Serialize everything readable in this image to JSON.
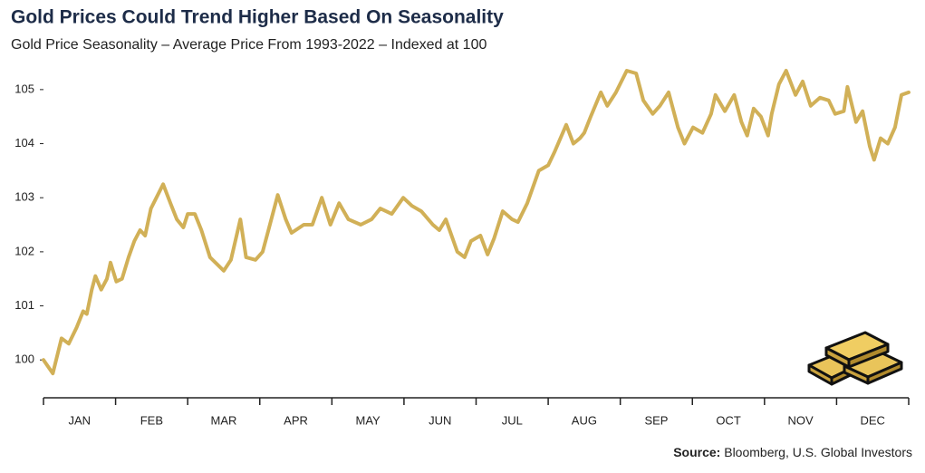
{
  "chart_data": {
    "type": "line",
    "title": "Gold Prices Could Trend Higher Based On Seasonality",
    "subtitle": "Gold Price Seasonality – Average Price From 1993-2022 – Indexed at 100",
    "source_label": "Source:",
    "source": "Bloomberg, U.S. Global Investors",
    "categories": [
      "JAN",
      "FEB",
      "MAR",
      "APR",
      "MAY",
      "JUN",
      "JUL",
      "AUG",
      "SEP",
      "OCT",
      "NOV",
      "DEC"
    ],
    "xlim": [
      0,
      12
    ],
    "xticks": [
      0,
      1,
      2,
      3,
      4,
      5,
      6,
      7,
      8,
      9,
      10,
      11,
      12
    ],
    "ylim": [
      99.3,
      105.4
    ],
    "yticks": [
      100,
      101,
      102,
      103,
      104,
      105
    ],
    "grid": false,
    "x": [
      0,
      0.13,
      0.25,
      0.35,
      0.46,
      0.55,
      0.6,
      0.67,
      0.72,
      0.8,
      0.88,
      0.93,
      1.01,
      1.09,
      1.18,
      1.26,
      1.34,
      1.41,
      1.49,
      1.66,
      1.76,
      1.85,
      1.94,
      2.0,
      2.1,
      2.19,
      2.31,
      2.5,
      2.6,
      2.73,
      2.81,
      2.94,
      3.04,
      3.12,
      3.25,
      3.36,
      3.44,
      3.61,
      3.73,
      3.86,
      3.98,
      4.1,
      4.23,
      4.4,
      4.55,
      4.67,
      4.83,
      4.99,
      5.11,
      5.24,
      5.4,
      5.49,
      5.58,
      5.74,
      5.84,
      5.93,
      6.06,
      6.16,
      6.25,
      6.37,
      6.5,
      6.58,
      6.71,
      6.87,
      7.0,
      7.09,
      7.25,
      7.35,
      7.44,
      7.5,
      7.59,
      7.73,
      7.82,
      7.94,
      8.09,
      8.22,
      8.32,
      8.45,
      8.55,
      8.67,
      8.8,
      8.89,
      9.01,
      9.14,
      9.26,
      9.32,
      9.45,
      9.58,
      9.68,
      9.76,
      9.85,
      9.95,
      10.05,
      10.1,
      10.2,
      10.3,
      10.43,
      10.53,
      10.64,
      10.77,
      10.89,
      10.98,
      11.1,
      11.15,
      11.27,
      11.36,
      11.46,
      11.52,
      11.61,
      11.71,
      11.81,
      11.9,
      12.0
    ],
    "series": [
      {
        "name": "Gold Price Seasonality",
        "color": "#d1b057",
        "values": [
          100,
          99.75,
          100.4,
          100.3,
          100.6,
          100.9,
          100.85,
          101.3,
          101.55,
          101.3,
          101.5,
          101.8,
          101.45,
          101.5,
          101.9,
          102.2,
          102.4,
          102.3,
          102.8,
          103.25,
          102.9,
          102.6,
          102.45,
          102.7,
          102.7,
          102.4,
          101.9,
          101.65,
          101.85,
          102.6,
          101.9,
          101.85,
          102.0,
          102.4,
          103.05,
          102.6,
          102.35,
          102.5,
          102.5,
          103.0,
          102.5,
          102.9,
          102.6,
          102.5,
          102.6,
          102.8,
          102.7,
          103.0,
          102.85,
          102.75,
          102.5,
          102.4,
          102.6,
          102.0,
          101.9,
          102.2,
          102.3,
          101.95,
          102.25,
          102.75,
          102.6,
          102.55,
          102.9,
          103.5,
          103.6,
          103.85,
          104.35,
          104.0,
          104.1,
          104.2,
          104.5,
          104.95,
          104.7,
          104.95,
          105.35,
          105.3,
          104.8,
          104.55,
          104.7,
          104.95,
          104.3,
          104.0,
          104.3,
          104.2,
          104.55,
          104.9,
          104.6,
          104.9,
          104.4,
          104.15,
          104.65,
          104.5,
          104.15,
          104.55,
          105.1,
          105.35,
          104.9,
          105.15,
          104.7,
          104.85,
          104.8,
          104.55,
          104.6,
          105.05,
          104.4,
          104.6,
          103.95,
          103.7,
          104.1,
          104.0,
          104.3,
          104.9,
          104.95
        ]
      }
    ]
  }
}
